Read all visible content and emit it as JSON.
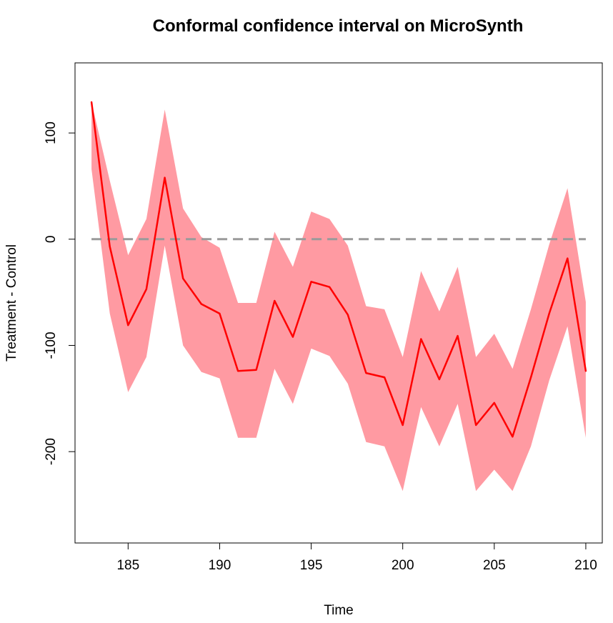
{
  "chart_data": {
    "type": "line",
    "title": "Conformal confidence interval on MicroSynth",
    "xlabel": "Time",
    "ylabel": "Treatment - Control",
    "xlim": [
      182.1,
      210.9
    ],
    "ylim": [
      -286,
      166
    ],
    "xticks": [
      185,
      190,
      195,
      200,
      205,
      210
    ],
    "yticks": [
      -200,
      -100,
      0,
      100
    ],
    "x": [
      183,
      184,
      185,
      186,
      187,
      188,
      189,
      190,
      191,
      192,
      193,
      194,
      195,
      196,
      197,
      198,
      199,
      200,
      201,
      202,
      203,
      204,
      205,
      206,
      207,
      208,
      209,
      210
    ],
    "series": [
      {
        "values": [
          129,
          -7,
          -81,
          -47,
          58,
          -37,
          -61,
          -70,
          -124,
          -123,
          -58,
          -92,
          -40,
          -45,
          -71,
          -126,
          -130,
          -175,
          -94,
          -132,
          -91,
          -175,
          -154,
          -186,
          -130,
          -70,
          -18,
          -124
        ],
        "color": "#ff0000"
      }
    ],
    "band": {
      "upper": [
        129,
        55,
        -15,
        19,
        122,
        29,
        2,
        -8,
        -60,
        -60,
        7,
        -26,
        26,
        19,
        -6,
        -63,
        -66,
        -111,
        -30,
        -68,
        -26,
        -111,
        -89,
        -122,
        -66,
        -5,
        48,
        -59
      ],
      "lower": [
        66,
        -70,
        -144,
        -111,
        -6,
        -100,
        -125,
        -131,
        -187,
        -187,
        -122,
        -155,
        -103,
        -110,
        -136,
        -191,
        -195,
        -237,
        -158,
        -195,
        -155,
        -237,
        -217,
        -237,
        -195,
        -133,
        -82,
        -187
      ],
      "color": "#ff9aa2"
    },
    "reference_line": {
      "y": 0,
      "style": "dashed",
      "color": "#9a9a9a"
    },
    "grid": false,
    "legend": "none"
  }
}
